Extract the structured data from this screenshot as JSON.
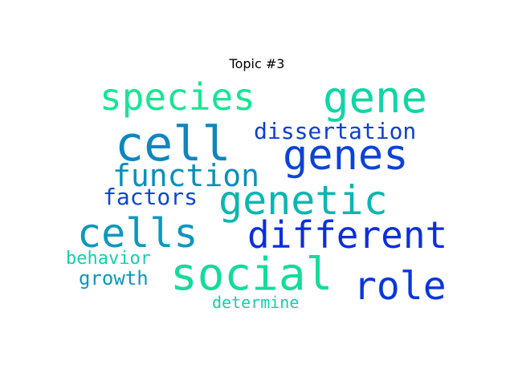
{
  "figure": {
    "title": "Topic #3"
  },
  "words": [
    {
      "text": "species",
      "color": "#16e695"
    },
    {
      "text": "gene",
      "color": "#10d6a6"
    },
    {
      "text": "cell",
      "color": "#0e86bf"
    },
    {
      "text": "dissertation",
      "color": "#0c3fd6"
    },
    {
      "text": "genes",
      "color": "#0b43d9"
    },
    {
      "text": "function",
      "color": "#0a8fbd"
    },
    {
      "text": "factors",
      "color": "#0c48d6"
    },
    {
      "text": "genetic",
      "color": "#0cb6b0"
    },
    {
      "text": "cells",
      "color": "#0d98bd"
    },
    {
      "text": "different",
      "color": "#0b2ee0"
    },
    {
      "text": "behavior",
      "color": "#14d0ad"
    },
    {
      "text": "social",
      "color": "#13dc9b"
    },
    {
      "text": "role",
      "color": "#0b36dc"
    },
    {
      "text": "growth",
      "color": "#0d98b9"
    },
    {
      "text": "determine",
      "color": "#14d0ad"
    }
  ]
}
